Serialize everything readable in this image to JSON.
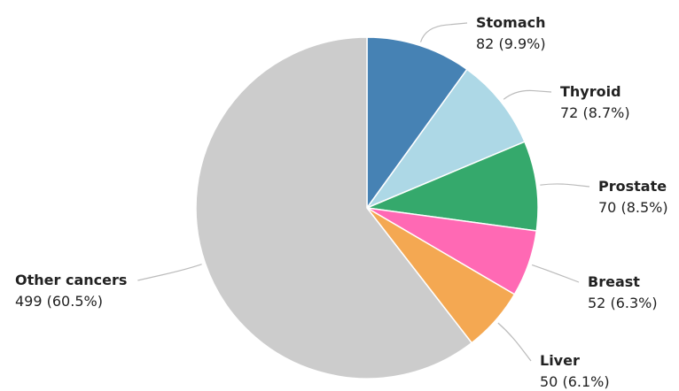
{
  "chart_data": {
    "type": "pie",
    "categories": [
      "Stomach",
      "Thyroid",
      "Prostate",
      "Breast",
      "Liver",
      "Other cancers"
    ],
    "values": [
      82,
      72,
      70,
      52,
      50,
      499
    ],
    "value_labels": [
      "82 (9.9%)",
      "72 (8.7%)",
      "70 (8.5%)",
      "52 (6.3%)",
      "50 (6.1%)",
      "499 (60.5%)"
    ],
    "colors": [
      "#4682b4",
      "#add8e6",
      "#35a96c",
      "#ff69b4",
      "#f4a852",
      "#cccccc"
    ]
  }
}
